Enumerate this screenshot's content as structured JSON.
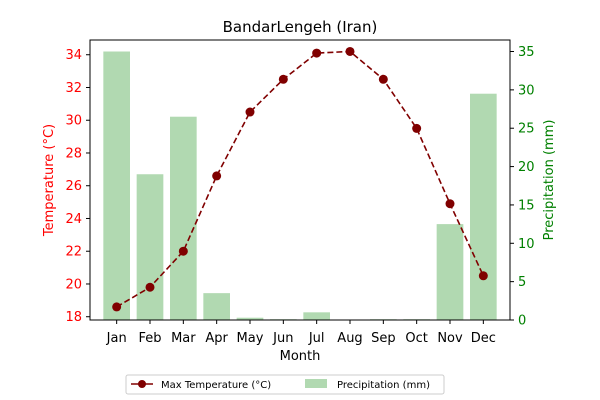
{
  "chart_data": {
    "type": "bar+line",
    "title": "BandarLengeh (Iran)",
    "xlabel": "Month",
    "ylabel_left": "Temperature (°C)",
    "ylabel_right": "Precipitation (mm)",
    "categories": [
      "Jan",
      "Feb",
      "Mar",
      "Apr",
      "May",
      "Jun",
      "Jul",
      "Aug",
      "Sep",
      "Oct",
      "Nov",
      "Dec"
    ],
    "ylim_left": [
      17.8,
      34.9
    ],
    "yticks_left": [
      18,
      20,
      22,
      24,
      26,
      28,
      30,
      32,
      34
    ],
    "ylim_right": [
      0,
      36.5
    ],
    "yticks_right": [
      0,
      5,
      10,
      15,
      20,
      25,
      30,
      35
    ],
    "series": [
      {
        "name": "Max Temperature (°C)",
        "axis": "left",
        "kind": "line",
        "values": [
          18.6,
          19.8,
          22.0,
          26.6,
          30.5,
          32.5,
          34.1,
          34.2,
          32.5,
          29.5,
          24.9,
          20.5
        ]
      },
      {
        "name": "Precipitation (mm)",
        "axis": "right",
        "kind": "bar",
        "values": [
          35.0,
          19.0,
          26.5,
          3.5,
          0.3,
          0.1,
          1.0,
          0.0,
          0.1,
          0.1,
          12.5,
          29.5
        ]
      }
    ],
    "legend_position": "bottom-center",
    "grid": false,
    "colors": {
      "temperature_line": "#800000",
      "temperature_axis": "#ff0000",
      "precipitation_bar": "#b1d9b1",
      "precipitation_axis": "#008000",
      "text": "#000000"
    }
  }
}
